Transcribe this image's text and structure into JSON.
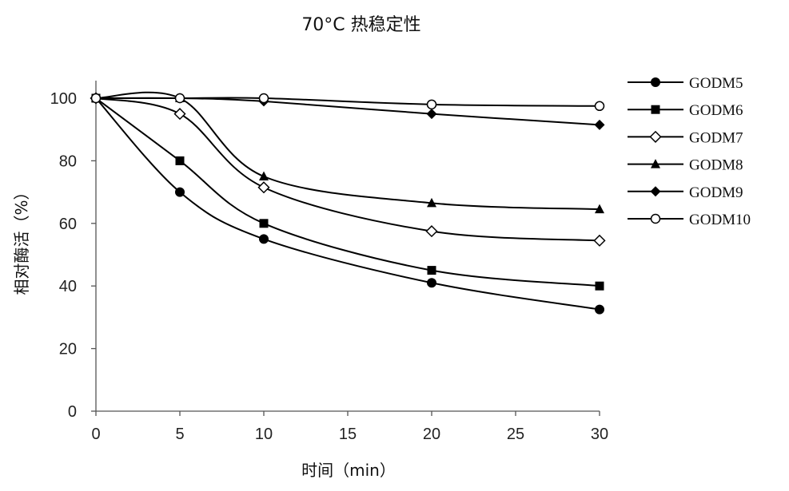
{
  "chart_data": {
    "type": "line",
    "title": "70°C  热稳定性",
    "xlabel": "时间（min）",
    "ylabel": "相对酶活（%）",
    "xlim": [
      0,
      30
    ],
    "ylim": [
      0,
      100
    ],
    "x_ticks": [
      "0",
      "5",
      "10",
      "15",
      "20",
      "25",
      "30"
    ],
    "y_ticks": [
      "0",
      "20",
      "40",
      "60",
      "80",
      "100"
    ],
    "grid": false,
    "legend_position": "right",
    "series": [
      {
        "name": "GODM5",
        "marker": "filled-circle",
        "x": [
          0,
          5,
          10,
          20,
          30
        ],
        "values": [
          100,
          70,
          55,
          41,
          32.5
        ]
      },
      {
        "name": "GODM6",
        "marker": "filled-square",
        "x": [
          0,
          5,
          10,
          20,
          30
        ],
        "values": [
          100,
          80,
          60,
          45,
          40
        ]
      },
      {
        "name": "GODM7",
        "marker": "open-diamond",
        "x": [
          0,
          5,
          10,
          20,
          30
        ],
        "values": [
          100,
          95,
          71.5,
          57.5,
          54.5
        ]
      },
      {
        "name": "GODM8",
        "marker": "filled-triangle",
        "x": [
          0,
          5,
          10,
          20,
          30
        ],
        "values": [
          100,
          100,
          75,
          66.5,
          64.5
        ]
      },
      {
        "name": "GODM9",
        "marker": "filled-diamond",
        "x": [
          0,
          5,
          10,
          20,
          30
        ],
        "values": [
          100,
          100,
          99,
          95,
          91.5
        ]
      },
      {
        "name": "GODM10",
        "marker": "open-circle",
        "x": [
          0,
          5,
          10,
          20,
          30
        ],
        "values": [
          100,
          100,
          100,
          98,
          97.5
        ]
      }
    ]
  }
}
